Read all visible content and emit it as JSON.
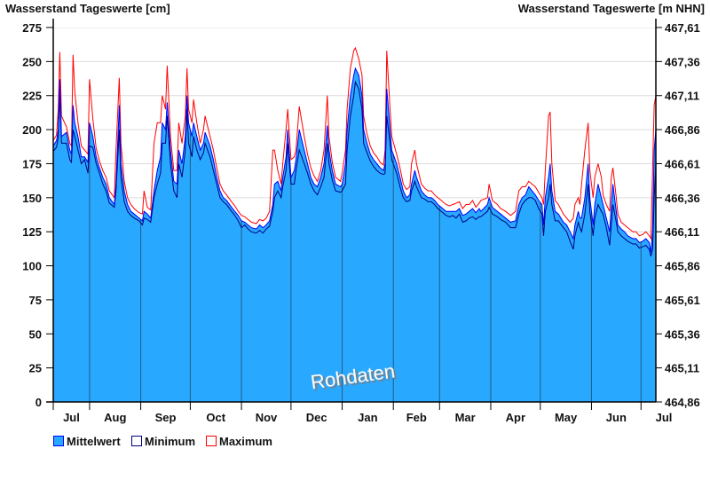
{
  "chart_data": {
    "type": "area",
    "title_left": "Wasserstand Tageswerte [cm]",
    "title_right": "Wasserstand Tageswerte [m NHN]",
    "watermark": "Rohdaten",
    "x_unit": "days since start (≈10 Jul)",
    "xlim": [
      0,
      365
    ],
    "ylim": [
      0,
      275
    ],
    "y_ticks": [
      0,
      25,
      50,
      75,
      100,
      125,
      150,
      175,
      200,
      225,
      250,
      275
    ],
    "y_tick_labels": [
      "0",
      "25",
      "50",
      "75",
      "100",
      "125",
      "150",
      "175",
      "200",
      "225",
      "250",
      "275"
    ],
    "y2_tick_labels": [
      "464,86",
      "465,11",
      "465,36",
      "465,61",
      "465,86",
      "466,11",
      "466,36",
      "466,61",
      "466,86",
      "467,11",
      "467,36",
      "467,61"
    ],
    "month_starts": [
      0,
      22,
      53,
      83,
      114,
      144,
      175,
      206,
      234,
      265,
      295,
      326,
      356,
      365
    ],
    "month_labels": [
      "Jul",
      "Aug",
      "Sep",
      "Oct",
      "Nov",
      "Dec",
      "Jan",
      "Feb",
      "Mar",
      "Apr",
      "May",
      "Jun",
      "Jul"
    ],
    "colors": {
      "fill": "#29a8ff",
      "mean": "#0000ff",
      "min": "#000080",
      "max": "#ff0000",
      "grid": "#dcdcdc",
      "month_line": "#1e5f86"
    },
    "legend": [
      {
        "label": "Mittelwert",
        "key": "mean"
      },
      {
        "label": "Minimum",
        "key": "min"
      },
      {
        "label": "Maximum",
        "key": "max"
      }
    ],
    "points": [
      [
        0,
        188,
        184,
        192
      ],
      [
        2,
        192,
        187,
        196
      ],
      [
        3,
        200,
        194,
        215
      ],
      [
        4,
        237,
        226,
        257
      ],
      [
        5,
        195,
        190,
        210
      ],
      [
        8,
        198,
        190,
        202
      ],
      [
        10,
        185,
        178,
        190
      ],
      [
        11,
        182,
        176,
        188
      ],
      [
        12,
        218,
        200,
        255
      ],
      [
        13,
        205,
        195,
        228
      ],
      [
        15,
        195,
        185,
        205
      ],
      [
        17,
        180,
        175,
        188
      ],
      [
        19,
        180,
        178,
        185
      ],
      [
        21,
        176,
        168,
        182
      ],
      [
        22,
        205,
        188,
        237
      ],
      [
        24,
        195,
        187,
        208
      ],
      [
        26,
        180,
        175,
        186
      ],
      [
        28,
        172,
        168,
        177
      ],
      [
        30,
        165,
        160,
        170
      ],
      [
        32,
        160,
        155,
        165
      ],
      [
        34,
        150,
        146,
        155
      ],
      [
        37,
        145,
        143,
        150
      ],
      [
        38,
        160,
        155,
        185
      ],
      [
        40,
        218,
        200,
        238
      ],
      [
        41,
        175,
        165,
        190
      ],
      [
        43,
        155,
        147,
        162
      ],
      [
        45,
        145,
        140,
        150
      ],
      [
        47,
        140,
        137,
        145
      ],
      [
        49,
        138,
        135,
        142
      ],
      [
        52,
        135,
        133,
        139
      ],
      [
        54,
        133,
        130,
        138
      ],
      [
        55,
        140,
        135,
        155
      ],
      [
        57,
        138,
        134,
        143
      ],
      [
        59,
        135,
        132,
        141
      ],
      [
        61,
        155,
        150,
        190
      ],
      [
        63,
        170,
        160,
        205
      ],
      [
        65,
        180,
        168,
        205
      ],
      [
        66,
        205,
        190,
        225
      ],
      [
        68,
        200,
        190,
        215
      ],
      [
        69,
        220,
        210,
        247
      ],
      [
        71,
        185,
        175,
        195
      ],
      [
        73,
        162,
        155,
        170
      ],
      [
        75,
        160,
        150,
        170
      ],
      [
        76,
        185,
        175,
        205
      ],
      [
        78,
        175,
        165,
        190
      ],
      [
        80,
        195,
        185,
        210
      ],
      [
        81,
        225,
        215,
        245
      ],
      [
        82,
        205,
        190,
        215
      ],
      [
        84,
        195,
        180,
        205
      ],
      [
        85,
        205,
        195,
        222
      ],
      [
        87,
        195,
        185,
        205
      ],
      [
        89,
        185,
        178,
        190
      ],
      [
        91,
        190,
        183,
        200
      ],
      [
        92,
        198,
        190,
        210
      ],
      [
        95,
        188,
        180,
        195
      ],
      [
        97,
        178,
        170,
        185
      ],
      [
        99,
        165,
        160,
        172
      ],
      [
        101,
        155,
        150,
        160
      ],
      [
        103,
        150,
        147,
        155
      ],
      [
        105,
        148,
        145,
        152
      ],
      [
        108,
        143,
        140,
        147
      ],
      [
        110,
        140,
        137,
        144
      ],
      [
        112,
        137,
        133,
        140
      ],
      [
        114,
        133,
        128,
        137
      ],
      [
        116,
        132,
        130,
        136
      ],
      [
        118,
        130,
        127,
        134
      ],
      [
        120,
        128,
        125,
        132
      ],
      [
        123,
        127,
        124,
        131
      ],
      [
        125,
        130,
        126,
        134
      ],
      [
        127,
        128,
        124,
        133
      ],
      [
        129,
        130,
        127,
        135
      ],
      [
        131,
        133,
        129,
        140
      ],
      [
        133,
        145,
        140,
        185
      ],
      [
        134,
        160,
        150,
        185
      ],
      [
        136,
        162,
        155,
        170
      ],
      [
        138,
        155,
        150,
        160
      ],
      [
        139,
        165,
        158,
        175
      ],
      [
        141,
        180,
        170,
        200
      ],
      [
        142,
        200,
        190,
        215
      ],
      [
        144,
        165,
        160,
        178
      ],
      [
        146,
        170,
        160,
        180
      ],
      [
        147,
        178,
        170,
        185
      ],
      [
        149,
        200,
        185,
        217
      ],
      [
        152,
        185,
        175,
        195
      ],
      [
        154,
        175,
        168,
        182
      ],
      [
        156,
        165,
        160,
        172
      ],
      [
        158,
        160,
        155,
        166
      ],
      [
        160,
        158,
        152,
        162
      ],
      [
        162,
        165,
        158,
        170
      ],
      [
        164,
        175,
        165,
        185
      ],
      [
        166,
        203,
        190,
        225
      ],
      [
        167,
        185,
        175,
        195
      ],
      [
        169,
        170,
        163,
        176
      ],
      [
        171,
        160,
        155,
        165
      ],
      [
        174,
        158,
        154,
        162
      ],
      [
        175,
        160,
        155,
        168
      ],
      [
        177,
        175,
        160,
        185
      ],
      [
        178,
        200,
        185,
        215
      ],
      [
        180,
        225,
        210,
        245
      ],
      [
        182,
        240,
        225,
        258
      ],
      [
        183,
        245,
        235,
        260
      ],
      [
        185,
        240,
        230,
        252
      ],
      [
        187,
        225,
        215,
        240
      ],
      [
        188,
        200,
        190,
        210
      ],
      [
        190,
        190,
        183,
        197
      ],
      [
        192,
        182,
        177,
        188
      ],
      [
        194,
        178,
        173,
        183
      ],
      [
        196,
        175,
        170,
        180
      ],
      [
        198,
        172,
        168,
        176
      ],
      [
        200,
        170,
        167,
        174
      ],
      [
        201,
        175,
        168,
        185
      ],
      [
        202,
        230,
        210,
        258
      ],
      [
        204,
        200,
        190,
        215
      ],
      [
        205,
        185,
        178,
        195
      ],
      [
        208,
        175,
        168,
        182
      ],
      [
        210,
        165,
        158,
        172
      ],
      [
        212,
        155,
        150,
        160
      ],
      [
        214,
        150,
        147,
        156
      ],
      [
        216,
        152,
        148,
        158
      ],
      [
        217,
        160,
        155,
        175
      ],
      [
        219,
        170,
        162,
        185
      ],
      [
        220,
        165,
        158,
        175
      ],
      [
        223,
        155,
        150,
        160
      ],
      [
        225,
        152,
        149,
        157
      ],
      [
        227,
        150,
        147,
        155
      ],
      [
        229,
        150,
        147,
        155
      ],
      [
        231,
        148,
        145,
        152
      ],
      [
        233,
        145,
        142,
        150
      ],
      [
        235,
        143,
        140,
        148
      ],
      [
        238,
        140,
        137,
        145
      ],
      [
        240,
        140,
        136,
        144
      ],
      [
        242,
        140,
        137,
        145
      ],
      [
        244,
        140,
        135,
        146
      ],
      [
        246,
        142,
        138,
        147
      ],
      [
        248,
        137,
        132,
        142
      ],
      [
        250,
        138,
        133,
        145
      ],
      [
        252,
        140,
        135,
        145
      ],
      [
        254,
        142,
        136,
        148
      ],
      [
        256,
        139,
        134,
        143
      ],
      [
        258,
        142,
        136,
        146
      ],
      [
        259,
        140,
        136,
        148
      ],
      [
        263,
        145,
        140,
        150
      ],
      [
        264,
        150,
        143,
        160
      ],
      [
        266,
        143,
        138,
        148
      ],
      [
        269,
        140,
        136,
        145
      ],
      [
        271,
        138,
        134,
        142
      ],
      [
        274,
        135,
        132,
        140
      ],
      [
        277,
        132,
        128,
        137
      ],
      [
        280,
        133,
        128,
        140
      ],
      [
        282,
        145,
        138,
        155
      ],
      [
        284,
        150,
        145,
        158
      ],
      [
        286,
        152,
        148,
        158
      ],
      [
        288,
        158,
        150,
        162
      ],
      [
        290,
        155,
        150,
        160
      ],
      [
        292,
        152,
        148,
        158
      ],
      [
        294,
        148,
        142,
        154
      ],
      [
        296,
        145,
        138,
        150
      ],
      [
        297,
        130,
        122,
        145
      ],
      [
        298,
        150,
        140,
        170
      ],
      [
        300,
        165,
        150,
        210
      ],
      [
        301,
        175,
        160,
        213
      ],
      [
        302,
        155,
        145,
        175
      ],
      [
        304,
        140,
        133,
        148
      ],
      [
        306,
        138,
        133,
        145
      ],
      [
        309,
        132,
        128,
        138
      ],
      [
        311,
        130,
        125,
        135
      ],
      [
        313,
        125,
        118,
        132
      ],
      [
        315,
        120,
        112,
        135
      ],
      [
        316,
        130,
        122,
        145
      ],
      [
        318,
        140,
        132,
        150
      ],
      [
        319,
        135,
        128,
        145
      ],
      [
        320,
        135,
        125,
        160
      ],
      [
        322,
        150,
        138,
        185
      ],
      [
        324,
        175,
        160,
        205
      ],
      [
        325,
        150,
        140,
        170
      ],
      [
        327,
        130,
        122,
        150
      ],
      [
        328,
        145,
        135,
        165
      ],
      [
        330,
        160,
        145,
        175
      ],
      [
        332,
        150,
        140,
        165
      ],
      [
        333,
        145,
        138,
        152
      ],
      [
        335,
        135,
        128,
        145
      ],
      [
        337,
        125,
        115,
        140
      ],
      [
        338,
        145,
        130,
        165
      ],
      [
        339,
        160,
        145,
        172
      ],
      [
        341,
        140,
        132,
        150
      ],
      [
        342,
        130,
        125,
        138
      ],
      [
        344,
        127,
        122,
        132
      ],
      [
        346,
        125,
        120,
        130
      ],
      [
        348,
        122,
        118,
        128
      ],
      [
        351,
        120,
        116,
        125
      ],
      [
        353,
        120,
        116,
        125
      ],
      [
        355,
        117,
        113,
        122
      ],
      [
        357,
        118,
        114,
        123
      ],
      [
        359,
        120,
        115,
        125
      ],
      [
        361,
        117,
        112,
        122
      ],
      [
        362,
        110,
        107,
        120
      ],
      [
        363,
        125,
        112,
        170
      ],
      [
        364,
        185,
        150,
        218
      ],
      [
        365,
        200,
        175,
        225
      ]
    ],
    "points_format": [
      "day",
      "Mittelwert",
      "Minimum",
      "Maximum"
    ]
  }
}
